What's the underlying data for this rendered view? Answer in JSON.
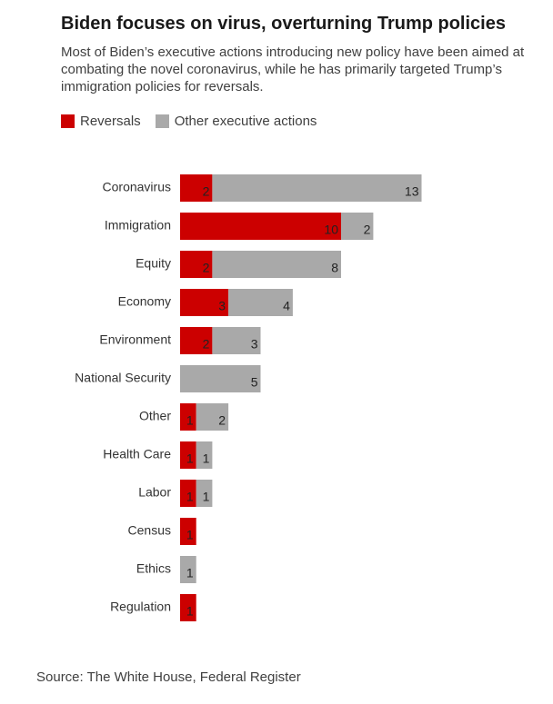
{
  "title": "Biden focuses on virus, overturning Trump policies",
  "subtitle": "Most of Biden’s executive actions introducing new policy have been aimed at combating the novel coronavirus, while he has primarily targeted Trump’s immigration policies for reversals.",
  "source": "Source: The White House, Federal Register",
  "colors": {
    "reversals": "#cc0000",
    "other": "#a9a9a9"
  },
  "chart_data": {
    "type": "bar",
    "orientation": "horizontal",
    "stacked": true,
    "categories": [
      "Coronavirus",
      "Immigration",
      "Equity",
      "Economy",
      "Environment",
      "National Security",
      "Other",
      "Health Care",
      "Labor",
      "Census",
      "Ethics",
      "Regulation"
    ],
    "series": [
      {
        "name": "Reversals",
        "color": "#cc0000",
        "values": [
          2,
          10,
          2,
          3,
          2,
          0,
          1,
          1,
          1,
          1,
          0,
          1
        ]
      },
      {
        "name": "Other executive actions",
        "color": "#a9a9a9",
        "values": [
          13,
          2,
          8,
          4,
          3,
          5,
          2,
          1,
          1,
          0,
          1,
          0
        ]
      }
    ],
    "legend_position": "top-left",
    "grid": false,
    "axes_visible": false
  }
}
